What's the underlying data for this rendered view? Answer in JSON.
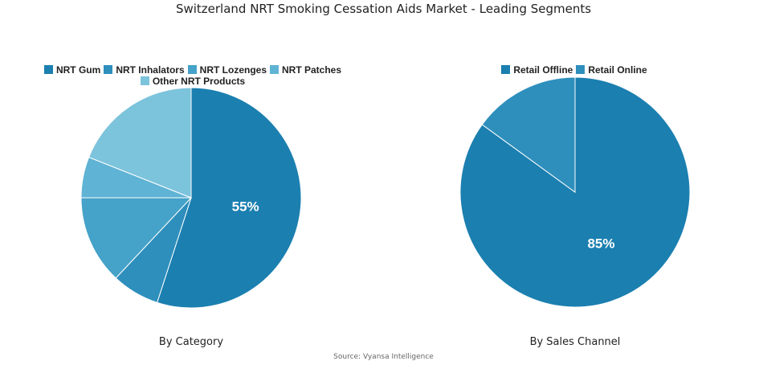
{
  "title": "Switzerland NRT Smoking Cessation Aids Market - Leading Segments",
  "source": "Source: Vyansa Intelligence",
  "chart_data": [
    {
      "type": "pie",
      "subtitle": "By Category",
      "legend_position": "top",
      "categories": [
        "NRT Gum",
        "NRT Inhalators",
        "NRT Lozenges",
        "NRT Patches",
        "Other NRT Products"
      ],
      "values": [
        55,
        7,
        13,
        6,
        19
      ],
      "colors": [
        "#1b7fb0",
        "#2e8fbc",
        "#45a2c8",
        "#5fb3d4",
        "#7cc3dc"
      ],
      "labels": [
        "55%",
        "",
        "",
        "",
        ""
      ]
    },
    {
      "type": "pie",
      "subtitle": "By Sales Channel",
      "legend_position": "top",
      "categories": [
        "Retail Offline",
        "Retail Online"
      ],
      "values": [
        85,
        15
      ],
      "colors": [
        "#1b7fb0",
        "#2e8fbc"
      ],
      "labels": [
        "85%",
        ""
      ]
    }
  ]
}
